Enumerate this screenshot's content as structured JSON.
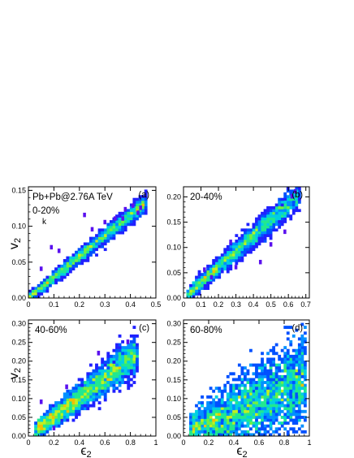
{
  "figure": {
    "ylabel": "v",
    "ylabel_sub": "2",
    "xlabel": "ϵ",
    "xlabel_sub": "2"
  },
  "chart_data": [
    {
      "type": "heatmap",
      "panel_tag": "(a)",
      "label_lines": [
        "Pb+Pb@2.76A TeV",
        "0-20%"
      ],
      "annotation": "k",
      "xlim": [
        0,
        0.5
      ],
      "ylim": [
        0,
        0.155
      ],
      "xticks": [
        0,
        0.1,
        0.2,
        0.3,
        0.4,
        0.5
      ],
      "xtick_labels": [
        "0",
        "0.1",
        "0.2",
        "0.3",
        "0.4",
        "0.5"
      ],
      "yticks": [
        0,
        0.05,
        0.1,
        0.15
      ],
      "ytick_labels": [
        "0.00",
        "0.05",
        "0.10",
        "0.15"
      ],
      "trend": {
        "x0": 0.0,
        "x1": 0.46,
        "slope": 0.29,
        "spread": 0.007
      },
      "outliers": [
        [
          0.09,
          0.07
        ],
        [
          0.12,
          0.065
        ],
        [
          0.3,
          0.105
        ],
        [
          0.38,
          0.123
        ],
        [
          0.41,
          0.128
        ],
        [
          0.44,
          0.125
        ],
        [
          0.25,
          0.095
        ],
        [
          0.37,
          0.11
        ],
        [
          0.34,
          0.11
        ],
        [
          0.22,
          0.115
        ],
        [
          0.05,
          0.04
        ],
        [
          0.43,
          0.118
        ]
      ]
    },
    {
      "type": "heatmap",
      "panel_tag": "(b)",
      "label_lines": [
        "20-40%"
      ],
      "xlim": [
        0,
        0.72
      ],
      "ylim": [
        0,
        0.22
      ],
      "xticks": [
        0,
        0.1,
        0.2,
        0.3,
        0.4,
        0.5,
        0.6,
        0.7
      ],
      "xtick_labels": [
        "0",
        "0.1",
        "0.2",
        "0.3",
        "0.4",
        "0.5",
        "0.6",
        "0.7"
      ],
      "yticks": [
        0,
        0.05,
        0.1,
        0.15,
        0.2
      ],
      "ytick_labels": [
        "0.00",
        "0.05",
        "0.10",
        "0.15",
        "0.20"
      ],
      "trend": {
        "x0": 0.02,
        "x1": 0.66,
        "slope": 0.31,
        "spread": 0.013
      },
      "outliers": [
        [
          0.16,
          0.04
        ],
        [
          0.12,
          0.055
        ],
        [
          0.44,
          0.07
        ],
        [
          0.58,
          0.13
        ],
        [
          0.62,
          0.2
        ],
        [
          0.64,
          0.21
        ],
        [
          0.3,
          0.06
        ],
        [
          0.5,
          0.105
        ],
        [
          0.27,
          0.11
        ]
      ]
    },
    {
      "type": "heatmap",
      "panel_tag": "(c)",
      "label_lines": [
        "40-60%"
      ],
      "xlim": [
        0,
        1
      ],
      "ylim": [
        0,
        0.31
      ],
      "xticks": [
        0,
        0.2,
        0.4,
        0.6,
        0.8,
        1
      ],
      "xtick_labels": [
        "0",
        "0.2",
        "0.4",
        "0.6",
        "0.8",
        "1"
      ],
      "yticks": [
        0,
        0.05,
        0.1,
        0.15,
        0.2,
        0.25,
        0.3
      ],
      "ytick_labels": [
        "0.00",
        "0.05",
        "0.10",
        "0.15",
        "0.20",
        "0.25",
        "0.30"
      ],
      "trend": {
        "x0": 0.05,
        "x1": 0.85,
        "slope": 0.26,
        "spread": 0.022
      },
      "outliers": [
        [
          0.1,
          0.09
        ],
        [
          0.2,
          0.02
        ],
        [
          0.55,
          0.22
        ],
        [
          0.78,
          0.25
        ],
        [
          0.3,
          0.13
        ]
      ]
    },
    {
      "type": "heatmap",
      "panel_tag": "(d)",
      "label_lines": [
        "60-80%"
      ],
      "xlim": [
        0,
        1
      ],
      "ylim": [
        0,
        0.31
      ],
      "xticks": [
        0,
        0.2,
        0.4,
        0.6,
        0.8,
        1
      ],
      "xtick_labels": [
        "0",
        "0.2",
        "0.4",
        "0.6",
        "0.8",
        "1"
      ],
      "yticks": [
        0,
        0.05,
        0.1,
        0.15,
        0.2,
        0.25,
        0.3
      ],
      "ytick_labels": [
        "0.00",
        "0.05",
        "0.10",
        "0.15",
        "0.20",
        "0.25",
        "0.30"
      ],
      "trend": {
        "x0": 0.05,
        "x1": 0.97,
        "slope": 0.16,
        "spread": 0.05
      },
      "outliers": []
    }
  ]
}
